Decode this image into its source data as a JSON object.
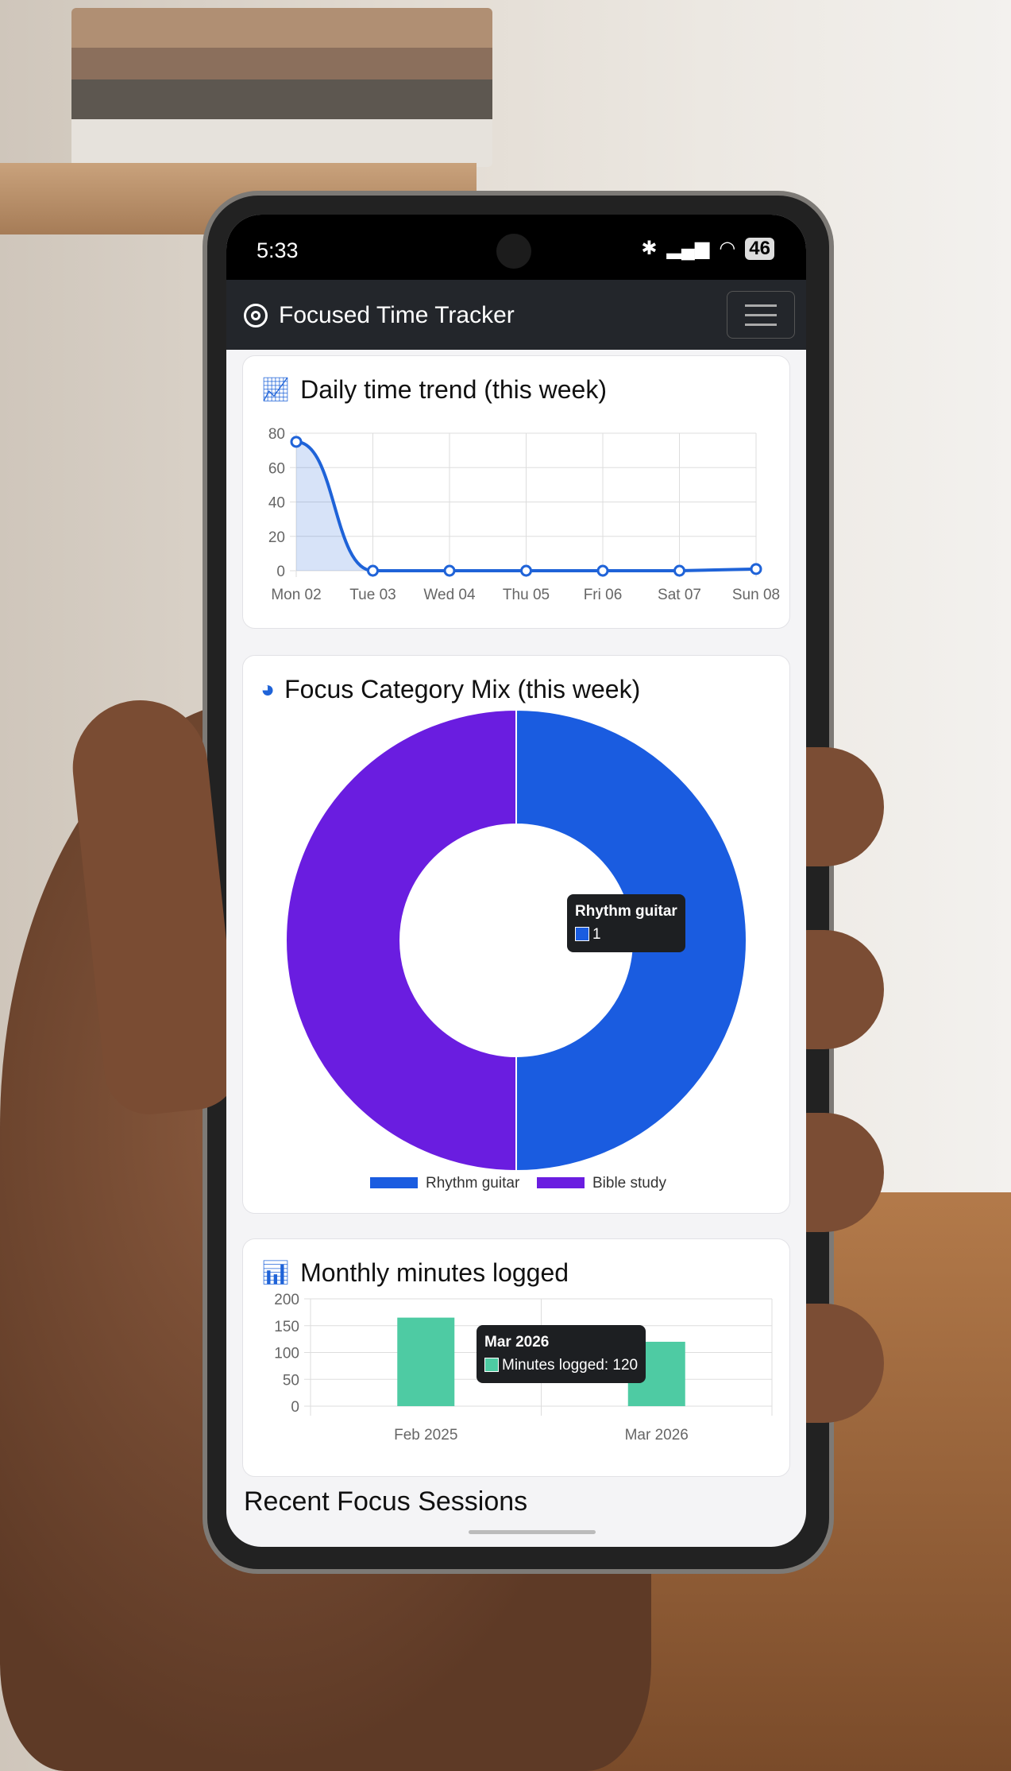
{
  "status_bar": {
    "time": "5:33",
    "battery": "46"
  },
  "app": {
    "title": "Focused Time Tracker",
    "menu_icon": "hamburger-icon"
  },
  "cards": {
    "daily": {
      "title": "Daily time trend (this week)",
      "icon": "line-chart-icon"
    },
    "mix": {
      "title": "Focus Category Mix (this week)",
      "icon": "pie-chart-icon",
      "tooltip": {
        "title": "Rhythm guitar",
        "value": "1"
      }
    },
    "monthly": {
      "title": "Monthly minutes logged",
      "icon": "bar-chart-icon",
      "tooltip": {
        "title": "Mar 2026",
        "value": "Minutes logged: 120"
      }
    }
  },
  "recent_heading": "Recent Focus Sessions",
  "chart_data": [
    {
      "type": "line",
      "categories": [
        "Mon 02",
        "Tue 03",
        "Wed 04",
        "Thu 05",
        "Fri 06",
        "Sat 07",
        "Sun 08"
      ],
      "values": [
        75,
        0,
        0,
        0,
        0,
        0,
        1
      ],
      "ylim": [
        0,
        80
      ],
      "yticks": [
        0,
        20,
        40,
        60,
        80
      ],
      "grid": true,
      "fill": true,
      "color": "#1f63d8"
    },
    {
      "type": "pie",
      "donut": true,
      "labels": [
        "Rhythm guitar",
        "Bible study"
      ],
      "values": [
        1,
        1
      ],
      "colors": [
        "#1a5ce0",
        "#6a1de0"
      ],
      "legend": "bottom"
    },
    {
      "type": "bar",
      "categories": [
        "Feb 2025",
        "Mar 2026"
      ],
      "series": [
        {
          "name": "Minutes logged",
          "values": [
            165,
            120
          ]
        }
      ],
      "ylim": [
        0,
        200
      ],
      "yticks": [
        0,
        50,
        100,
        150,
        200
      ],
      "grid": true,
      "color": "#4ecba3"
    }
  ]
}
